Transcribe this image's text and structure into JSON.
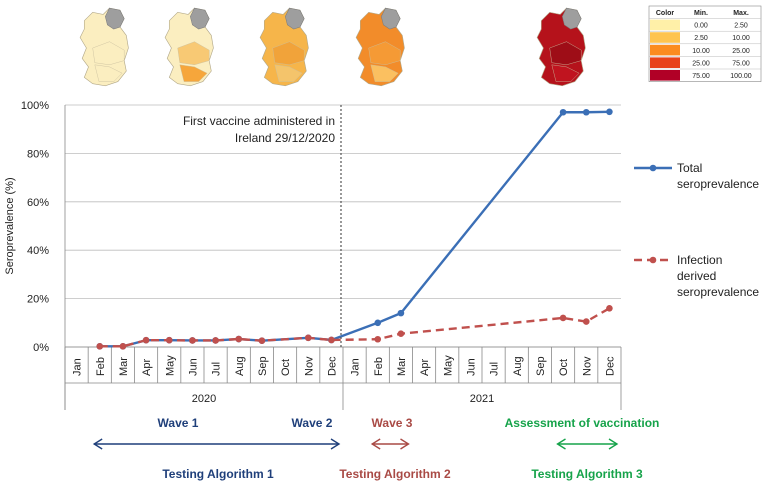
{
  "chart_data": {
    "type": "line",
    "ylabel": "Seroprevalence (%)",
    "ylim": [
      0,
      100
    ],
    "yticks": [
      "0%",
      "20%",
      "40%",
      "60%",
      "80%",
      "100%"
    ],
    "ytick_values": [
      0,
      20,
      40,
      60,
      80,
      100
    ],
    "grid": true,
    "legend_position": "right",
    "categories": [
      "Jan",
      "Feb",
      "Mar",
      "Apr",
      "May",
      "Jun",
      "Jul",
      "Aug",
      "Sep",
      "Oct",
      "Nov",
      "Dec",
      "Jan",
      "Feb",
      "Mar",
      "Apr",
      "May",
      "Jun",
      "Jul",
      "Aug",
      "Sep",
      "Oct",
      "Nov",
      "Dec"
    ],
    "years": [
      {
        "label": "2020",
        "start": 0,
        "end": 11
      },
      {
        "label": "2021",
        "start": 12,
        "end": 23
      }
    ],
    "series": [
      {
        "name": "Total seroprevalence",
        "legend_lines": [
          "Total",
          "seroprevalence"
        ],
        "color": "#3b6fb6",
        "dash": "solid",
        "points": [
          [
            1,
            0.3
          ],
          [
            2,
            0.3
          ],
          [
            3,
            2.8
          ],
          [
            4,
            2.8
          ],
          [
            5,
            2.7
          ],
          [
            6,
            2.7
          ],
          [
            7,
            3.3
          ],
          [
            8,
            2.6
          ],
          [
            10,
            3.8
          ],
          [
            11,
            2.9
          ],
          [
            13,
            10
          ],
          [
            14,
            14
          ],
          [
            21,
            97
          ],
          [
            22,
            97
          ],
          [
            23,
            97.2
          ]
        ]
      },
      {
        "name": "Infection derived seroprevalence",
        "legend_lines": [
          "Infection",
          "derived",
          "seroprevalence"
        ],
        "color": "#c0504d",
        "dash": "dashed",
        "points": [
          [
            1,
            0.3
          ],
          [
            2,
            0.3
          ],
          [
            3,
            2.8
          ],
          [
            4,
            2.8
          ],
          [
            5,
            2.7
          ],
          [
            6,
            2.7
          ],
          [
            7,
            3.3
          ],
          [
            8,
            2.6
          ],
          [
            10,
            3.8
          ],
          [
            11,
            2.9
          ],
          [
            13,
            3.2
          ],
          [
            14,
            5.5
          ],
          [
            21,
            12
          ],
          [
            22,
            10.5
          ],
          [
            23,
            16
          ]
        ]
      }
    ],
    "vertical_marker": {
      "after_index": 11,
      "label_lines": [
        "First vaccine administered in",
        "Ireland 29/12/2020"
      ]
    },
    "phases": [
      {
        "label": "Wave 1",
        "color": "#1f3f7a",
        "from": 1,
        "to": 7,
        "row": "top"
      },
      {
        "label": "Wave 2",
        "color": "#1f3f7a",
        "from": 8,
        "to": 11,
        "row": "top"
      },
      {
        "label": "Wave 3",
        "color": "#a94a45",
        "from": 13,
        "to": 14,
        "row": "top"
      },
      {
        "label": "Assessment of vaccination",
        "color": "#16a34a",
        "from": 21,
        "to": 23,
        "row": "top"
      }
    ],
    "arrows": [
      {
        "color": "#1f3f7a",
        "from": 1,
        "to": 11
      },
      {
        "color": "#a94a45",
        "from": 13,
        "to": 14
      },
      {
        "color": "#16a34a",
        "from": 21,
        "to": 23
      }
    ],
    "algorithms": [
      {
        "label": "Testing Algorithm 1",
        "color": "#1f3f7a",
        "center": 6
      },
      {
        "label": "Testing Algorithm 2",
        "color": "#a94a45",
        "center": 13.5
      },
      {
        "label": "Testing Algorithm 3",
        "color": "#16a34a",
        "center": 22
      }
    ],
    "color_scale": {
      "headers": [
        "Color",
        "Min.",
        "Max."
      ],
      "rows": [
        {
          "color": "#fff0a8",
          "min": "0.00",
          "max": "2.50"
        },
        {
          "color": "#fec44f",
          "min": "2.50",
          "max": "10.00"
        },
        {
          "color": "#fb8c1f",
          "min": "10.00",
          "max": "25.00"
        },
        {
          "color": "#e8431a",
          "min": "25.00",
          "max": "75.00"
        },
        {
          "color": "#b10026",
          "min": "75.00",
          "max": "100.00"
        }
      ]
    },
    "maps": [
      {
        "label": "map-1",
        "fills": [
          "#fbeec0",
          "#fbeec0",
          "#fbeec0"
        ]
      },
      {
        "label": "map-2",
        "fills": [
          "#fbeec0",
          "#f8c974",
          "#f6a63b"
        ]
      },
      {
        "label": "map-3",
        "fills": [
          "#f6b54a",
          "#f1a33a",
          "#f4c46b"
        ]
      },
      {
        "label": "map-4",
        "fills": [
          "#f28c2a",
          "#f59a35",
          "#fbc060"
        ]
      },
      {
        "label": "map-5",
        "fills": [
          "#b5121b",
          "#9e0d17",
          "#c0141f"
        ]
      }
    ]
  }
}
